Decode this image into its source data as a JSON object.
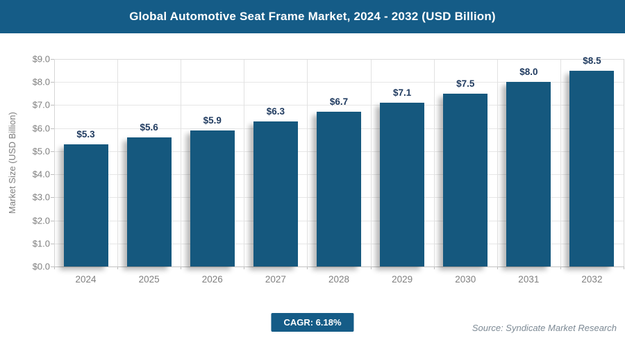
{
  "header": {
    "title": "Global Automotive Seat Frame Market, 2024 - 2032 (USD Billion)",
    "bg_color": "#155C87"
  },
  "chart_data": {
    "type": "bar",
    "title": "Global Automotive Seat Frame Market, 2024 - 2032 (USD Billion)",
    "categories": [
      "2024",
      "2025",
      "2026",
      "2027",
      "2028",
      "2029",
      "2030",
      "2031",
      "2032"
    ],
    "values": [
      5.3,
      5.6,
      5.9,
      6.3,
      6.7,
      7.1,
      7.5,
      8.0,
      8.5
    ],
    "bar_labels": [
      "$5.3",
      "$5.6",
      "$5.9",
      "$6.3",
      "$6.7",
      "$7.1",
      "$7.5",
      "$8.0",
      "$8.5"
    ],
    "xlabel": "",
    "ylabel": "Market Size (USD Billion)",
    "ylim": [
      0,
      9
    ],
    "ytick_step": 1,
    "ytick_labels": [
      "$0.0",
      "$1.0",
      "$2.0",
      "$3.0",
      "$4.0",
      "$5.0",
      "$6.0",
      "$7.0",
      "$8.0",
      "$9.0"
    ],
    "grid": true,
    "legend": false,
    "bar_color": "#15587E",
    "bar_label_color": "#1F3A5F",
    "axis_text_color": "#7f7f7f"
  },
  "footer": {
    "cagr_label": "CAGR: 6.18%",
    "cagr_bg_color": "#155C87",
    "source": "Source: Syndicate Market Research"
  }
}
